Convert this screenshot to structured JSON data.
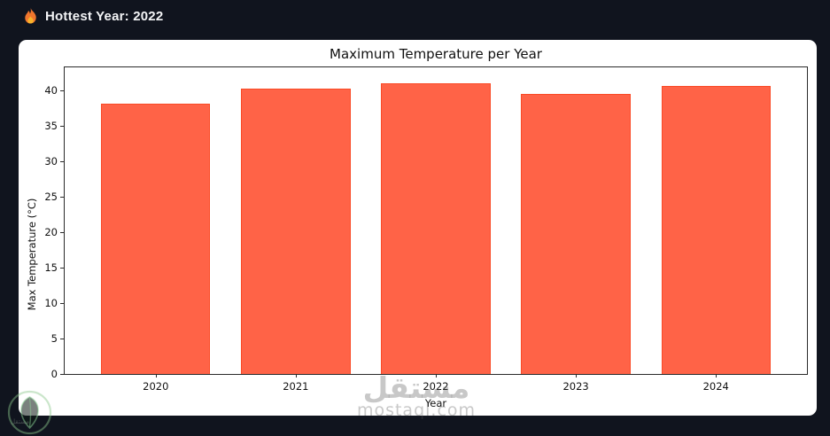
{
  "header": {
    "icon": "flame-icon",
    "title": "Hottest Year: 2022"
  },
  "chart_data": {
    "type": "bar",
    "title": "Maximum Temperature per Year",
    "xlabel": "Year",
    "ylabel": "Max Temperature (°C)",
    "categories": [
      "2020",
      "2021",
      "2022",
      "2023",
      "2024"
    ],
    "values": [
      38.2,
      40.3,
      41.0,
      39.5,
      40.7
    ],
    "ylim": [
      0,
      43.3
    ],
    "yticks": [
      0,
      5,
      10,
      15,
      20,
      25,
      30,
      35,
      40
    ],
    "bar_color": "#ff6347",
    "bar_edge_color": "#fa4a26",
    "bar_width": 0.78,
    "x_pad": 0.65,
    "grid": false,
    "legend": null
  },
  "watermark": {
    "brand_arabic": "مستقل",
    "brand_domain": "mostaql.com",
    "logo_caption": "مستقل"
  }
}
